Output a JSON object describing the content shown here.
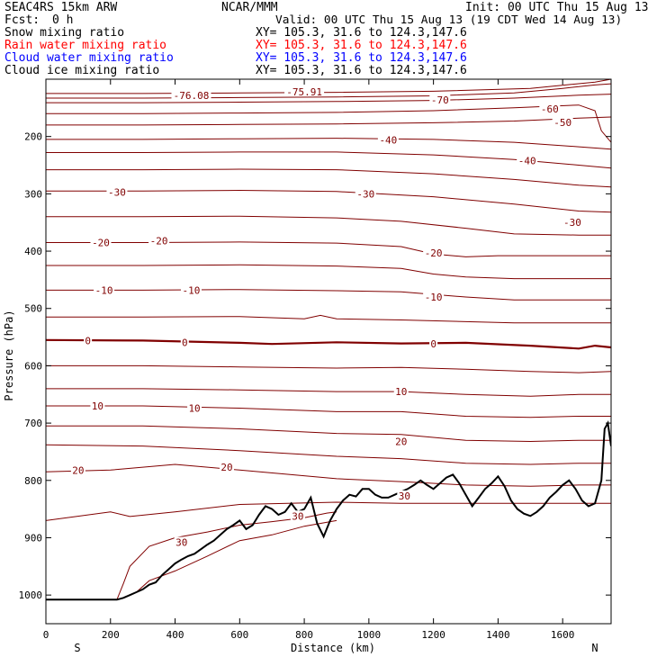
{
  "header": {
    "model": "SEAC4RS 15km ARW",
    "forecast_label": "Fcst:",
    "forecast_value": "0 h",
    "org": "NCAR/MMM",
    "init": "Init: 00 UTC Thu 15 Aug 13",
    "valid": "Valid: 00 UTC Thu 15 Aug 13 (19 CDT Wed 14 Aug 13)"
  },
  "fields": [
    {
      "name": "Snow mixing ratio",
      "xy": "XY= 105.3, 31.6 to 124.3,147.6",
      "color": "#000000"
    },
    {
      "name": "Rain water mixing ratio",
      "xy": "XY= 105.3, 31.6 to 124.3,147.6",
      "color": "#ff0000"
    },
    {
      "name": "Cloud water mixing ratio",
      "xy": "XY= 105.3, 31.6 to 124.3,147.6",
      "color": "#0000ff"
    },
    {
      "name": "Cloud ice mixing ratio",
      "xy": "XY= 105.3, 31.6 to 124.3,147.6",
      "color": "#000000"
    }
  ],
  "chart_data": {
    "type": "line",
    "xlabel": "Distance (km)",
    "ylabel": "Pressure (hPa)",
    "xlim": [
      0,
      1750
    ],
    "ylim": [
      1050,
      100
    ],
    "x_ticks": [
      0,
      200,
      400,
      600,
      800,
      1000,
      1200,
      1400,
      1600
    ],
    "y_ticks": [
      200,
      300,
      400,
      500,
      600,
      700,
      800,
      900,
      1000
    ],
    "end_labels": {
      "left": "S",
      "right": "N"
    },
    "contour_color": "#800000",
    "zero_contour_color": "#800000",
    "terrain_color": "#000000",
    "terrain": {
      "x": [
        0,
        220,
        240,
        260,
        280,
        300,
        320,
        340,
        360,
        380,
        400,
        420,
        440,
        460,
        480,
        500,
        520,
        540,
        560,
        580,
        600,
        620,
        640,
        660,
        680,
        700,
        720,
        740,
        760,
        780,
        800,
        820,
        840,
        860,
        880,
        900,
        920,
        940,
        960,
        980,
        1000,
        1020,
        1040,
        1060,
        1080,
        1100,
        1120,
        1140,
        1160,
        1180,
        1200,
        1220,
        1240,
        1260,
        1280,
        1300,
        1320,
        1340,
        1360,
        1380,
        1400,
        1420,
        1440,
        1460,
        1480,
        1500,
        1520,
        1540,
        1560,
        1580,
        1600,
        1620,
        1640,
        1660,
        1680,
        1700,
        1720,
        1730,
        1740,
        1750
      ],
      "y": [
        1008,
        1008,
        1005,
        1000,
        995,
        990,
        982,
        978,
        965,
        955,
        945,
        938,
        932,
        928,
        920,
        912,
        905,
        895,
        885,
        878,
        870,
        885,
        878,
        860,
        845,
        850,
        860,
        855,
        840,
        855,
        850,
        830,
        875,
        898,
        870,
        850,
        835,
        825,
        828,
        815,
        815,
        825,
        830,
        830,
        825,
        820,
        815,
        808,
        800,
        808,
        815,
        805,
        795,
        790,
        805,
        825,
        845,
        830,
        815,
        805,
        793,
        810,
        835,
        850,
        858,
        862,
        855,
        845,
        830,
        820,
        808,
        800,
        815,
        835,
        845,
        840,
        800,
        710,
        700,
        740
      ]
    },
    "contours": [
      {
        "level": "-76.08",
        "x": [
          0,
          300,
          600,
          900,
          1200,
          1500,
          1700,
          1750
        ],
        "y": [
          125,
          125,
          124,
          123,
          121,
          116,
          105,
          100
        ]
      },
      {
        "level": "-75.91",
        "x": [
          0,
          300,
          600,
          900,
          1200,
          1450,
          1600,
          1700,
          1750
        ],
        "y": [
          133,
          133,
          132,
          131,
          129,
          124,
          116,
          110,
          108
        ]
      },
      {
        "level": "-70",
        "x": [
          0,
          300,
          600,
          900,
          1200,
          1450,
          1650,
          1750
        ],
        "y": [
          141,
          141,
          140,
          139,
          137,
          133,
          128,
          126
        ]
      },
      {
        "level": "-60",
        "x": [
          0,
          300,
          600,
          900,
          1200,
          1450,
          1650,
          1700,
          1720,
          1750
        ],
        "y": [
          160,
          160,
          159,
          158,
          155,
          150,
          145,
          155,
          190,
          210
        ]
      },
      {
        "level": "-50",
        "x": [
          0,
          300,
          600,
          900,
          1200,
          1450,
          1650,
          1750
        ],
        "y": [
          180,
          180,
          179,
          178,
          176,
          173,
          168,
          166
        ]
      },
      {
        "level": "-40",
        "x": [
          0,
          300,
          600,
          900,
          1200,
          1450,
          1650,
          1750
        ],
        "y": [
          205,
          205,
          204,
          203,
          205,
          210,
          218,
          222
        ]
      },
      {
        "level": "-40",
        "x": [
          0,
          300,
          600,
          900,
          1200,
          1450,
          1650,
          1750
        ],
        "y": [
          228,
          228,
          227,
          227,
          232,
          240,
          250,
          255
        ]
      },
      {
        "level": "-30",
        "x": [
          0,
          300,
          600,
          900,
          1200,
          1450,
          1650,
          1750
        ],
        "y": [
          258,
          258,
          257,
          258,
          265,
          275,
          285,
          288
        ]
      },
      {
        "level": "-30",
        "x": [
          0,
          300,
          600,
          900,
          1200,
          1450,
          1650,
          1750
        ],
        "y": [
          295,
          295,
          294,
          296,
          305,
          318,
          330,
          332
        ]
      },
      {
        "level": "-20",
        "x": [
          0,
          300,
          600,
          900,
          1100,
          1300,
          1450,
          1650,
          1750
        ],
        "y": [
          340,
          340,
          339,
          342,
          348,
          360,
          370,
          372,
          372
        ]
      },
      {
        "level": "-20",
        "x": [
          0,
          300,
          600,
          900,
          1100,
          1200,
          1300,
          1400,
          1600,
          1750
        ],
        "y": [
          385,
          385,
          384,
          386,
          392,
          405,
          410,
          408,
          408,
          408
        ]
      },
      {
        "level": "-10",
        "x": [
          0,
          300,
          600,
          900,
          1100,
          1200,
          1300,
          1450,
          1650,
          1750
        ],
        "y": [
          425,
          425,
          424,
          426,
          430,
          440,
          445,
          448,
          448,
          448
        ]
      },
      {
        "level": "-10",
        "x": [
          0,
          300,
          600,
          900,
          1100,
          1300,
          1450,
          1650,
          1750
        ],
        "y": [
          468,
          468,
          467,
          469,
          471,
          480,
          485,
          485,
          485
        ]
      },
      {
        "level": "-10",
        "x": [
          0,
          300,
          600,
          800,
          850,
          900,
          1100,
          1300,
          1450,
          1650,
          1750
        ],
        "y": [
          515,
          515,
          514,
          518,
          512,
          518,
          520,
          523,
          525,
          525,
          525
        ]
      },
      {
        "level": "0",
        "x": [
          0,
          300,
          600,
          700,
          900,
          1100,
          1300,
          1500,
          1650,
          1700,
          1750
        ],
        "y": [
          555,
          556,
          560,
          562,
          559,
          561,
          560,
          565,
          570,
          565,
          568
        ]
      },
      {
        "level": "10",
        "x": [
          0,
          300,
          600,
          900,
          1100,
          1300,
          1500,
          1650,
          1750
        ],
        "y": [
          600,
          600,
          602,
          604,
          603,
          606,
          610,
          612,
          610
        ]
      },
      {
        "level": "10",
        "x": [
          0,
          300,
          600,
          900,
          1100,
          1300,
          1500,
          1650,
          1750
        ],
        "y": [
          640,
          640,
          642,
          645,
          645,
          650,
          653,
          650,
          650
        ]
      },
      {
        "level": "10",
        "x": [
          0,
          300,
          600,
          900,
          1100,
          1300,
          1500,
          1650,
          1750
        ],
        "y": [
          670,
          670,
          674,
          680,
          680,
          688,
          690,
          688,
          688
        ]
      },
      {
        "level": "20",
        "x": [
          0,
          300,
          600,
          900,
          1100,
          1300,
          1500,
          1650,
          1750
        ],
        "y": [
          705,
          705,
          710,
          718,
          720,
          730,
          732,
          730,
          730
        ]
      },
      {
        "level": "20",
        "x": [
          0,
          300,
          600,
          900,
          1100,
          1300,
          1500,
          1650,
          1750
        ],
        "y": [
          738,
          740,
          748,
          758,
          762,
          770,
          772,
          770,
          770
        ]
      },
      {
        "level": "20",
        "x": [
          0,
          200,
          400,
          600,
          900,
          1100,
          1300,
          1500,
          1650,
          1750
        ],
        "y": [
          785,
          782,
          772,
          782,
          797,
          802,
          808,
          810,
          808,
          808
        ]
      },
      {
        "level": "30",
        "x": [
          0,
          200,
          260,
          400,
          600,
          900,
          1100,
          1300,
          1500,
          1650,
          1750
        ],
        "y": [
          870,
          855,
          863,
          855,
          842,
          838,
          840,
          840,
          840,
          840,
          840
        ]
      },
      {
        "level": "30",
        "x": [
          220,
          240,
          260,
          320,
          400,
          500,
          600,
          700,
          800,
          870,
          900
        ],
        "y": [
          1008,
          980,
          950,
          915,
          900,
          890,
          878,
          872,
          865,
          857,
          855
        ]
      },
      {
        "level": "30",
        "x": [
          280,
          320,
          400,
          500,
          600,
          700,
          800,
          900
        ],
        "y": [
          995,
          975,
          958,
          932,
          905,
          895,
          880,
          870
        ]
      }
    ],
    "labels": [
      {
        "text": "-76.08",
        "x": 450,
        "y": 128
      },
      {
        "text": "-75.91",
        "x": 800,
        "y": 122
      },
      {
        "text": "-70",
        "x": 1220,
        "y": 136
      },
      {
        "text": "-60",
        "x": 1560,
        "y": 152
      },
      {
        "text": "-50",
        "x": 1600,
        "y": 175
      },
      {
        "text": "-40",
        "x": 1060,
        "y": 206
      },
      {
        "text": "-40",
        "x": 1490,
        "y": 242
      },
      {
        "text": "-30",
        "x": 220,
        "y": 297
      },
      {
        "text": "-30",
        "x": 990,
        "y": 300
      },
      {
        "text": "-30",
        "x": 1630,
        "y": 350
      },
      {
        "text": "-20",
        "x": 170,
        "y": 385
      },
      {
        "text": "-20",
        "x": 350,
        "y": 382
      },
      {
        "text": "-20",
        "x": 1200,
        "y": 403
      },
      {
        "text": "-10",
        "x": 180,
        "y": 468
      },
      {
        "text": "-10",
        "x": 450,
        "y": 468
      },
      {
        "text": "-10",
        "x": 1200,
        "y": 480
      },
      {
        "text": "0",
        "x": 130,
        "y": 556
      },
      {
        "text": "0",
        "x": 430,
        "y": 559
      },
      {
        "text": "0",
        "x": 1200,
        "y": 562
      },
      {
        "text": "10",
        "x": 1100,
        "y": 645
      },
      {
        "text": "10",
        "x": 160,
        "y": 670
      },
      {
        "text": "10",
        "x": 460,
        "y": 674
      },
      {
        "text": "20",
        "x": 1100,
        "y": 732
      },
      {
        "text": "20",
        "x": 560,
        "y": 777
      },
      {
        "text": "20",
        "x": 100,
        "y": 782
      },
      {
        "text": "30",
        "x": 1110,
        "y": 827
      },
      {
        "text": "30",
        "x": 780,
        "y": 862
      },
      {
        "text": "30",
        "x": 420,
        "y": 908
      }
    ]
  }
}
